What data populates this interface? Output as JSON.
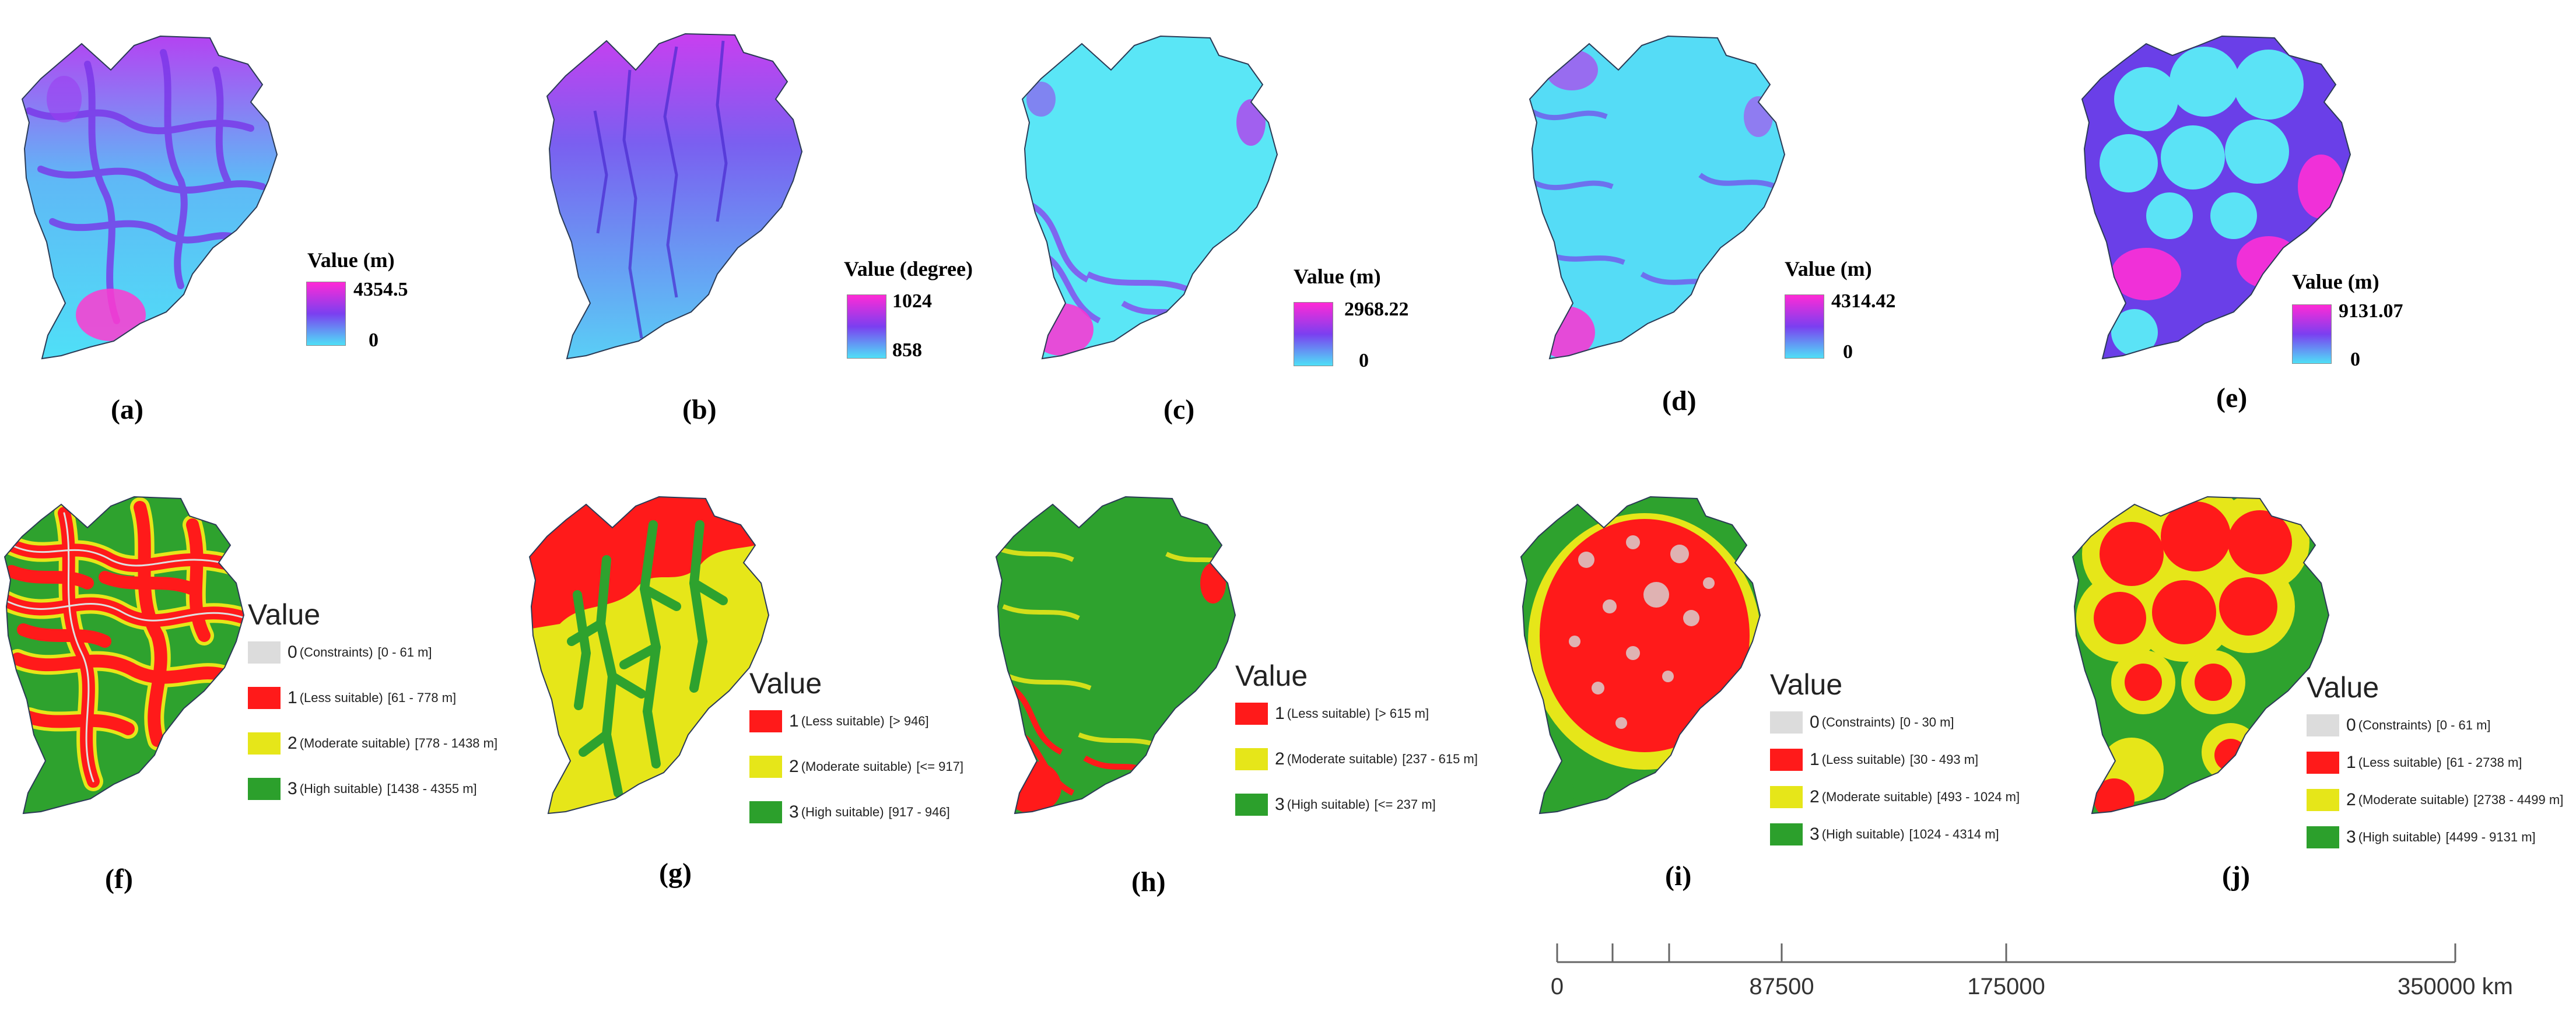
{
  "continuous_panels": [
    {
      "caption": "(a)",
      "legend_title": "Value (m)",
      "max": "4354.5",
      "min": "0",
      "colors": {
        "low": "#4fe0f7",
        "mid": "#7b3ff0",
        "high": "#ff2ad6"
      }
    },
    {
      "caption": "(b)",
      "legend_title": "Value (degree)",
      "max": "1024",
      "min": "858",
      "colors": {
        "low": "#4fe0f7",
        "mid": "#7b3ff0",
        "high": "#ff2ad6"
      }
    },
    {
      "caption": "(c)",
      "legend_title": "Value (m)",
      "max": "2968.22",
      "min": "0",
      "colors": {
        "low": "#4fe0f7",
        "mid": "#7b3ff0",
        "high": "#ff2ad6"
      }
    },
    {
      "caption": "(d)",
      "legend_title": "Value (m)",
      "max": "4314.42",
      "min": "0",
      "colors": {
        "low": "#4fe0f7",
        "mid": "#7b3ff0",
        "high": "#ff2ad6"
      }
    },
    {
      "caption": "(e)",
      "legend_title": "Value (m)",
      "max": "9131.07",
      "min": "0",
      "colors": {
        "low": "#4fe0f7",
        "mid": "#7b3ff0",
        "high": "#ff2ad6"
      }
    }
  ],
  "suitability_panels": [
    {
      "caption": "(f)",
      "legend_title": "Value",
      "items": [
        {
          "num": "0",
          "label": "(Constraints)",
          "range": "[0 - 61 m]",
          "color": "#dcdcdc"
        },
        {
          "num": "1",
          "label": "(Less suitable)",
          "range": "[61 - 778 m]",
          "color": "#ff1a1a"
        },
        {
          "num": "2",
          "label": "(Moderate suitable)",
          "range": "[778 - 1438 m]",
          "color": "#e6e619"
        },
        {
          "num": "3",
          "label": "(High suitable)",
          "range": "[1438 - 4355 m]",
          "color": "#2ca02c"
        }
      ]
    },
    {
      "caption": "(g)",
      "legend_title": "Value",
      "items": [
        {
          "num": "1",
          "label": "(Less suitable)",
          "range": "[> 946]",
          "color": "#ff1a1a"
        },
        {
          "num": "2",
          "label": "(Moderate suitable)",
          "range": "[<= 917]",
          "color": "#e6e619"
        },
        {
          "num": "3",
          "label": "(High suitable)",
          "range": "[917 - 946]",
          "color": "#2ca02c"
        }
      ]
    },
    {
      "caption": "(h)",
      "legend_title": "Value",
      "items": [
        {
          "num": "1",
          "label": "(Less suitable)",
          "range": "[> 615 m]",
          "color": "#ff1a1a"
        },
        {
          "num": "2",
          "label": "(Moderate suitable)",
          "range": "[237 - 615 m]",
          "color": "#e6e619"
        },
        {
          "num": "3",
          "label": "(High suitable)",
          "range": "[<= 237 m]",
          "color": "#2ca02c"
        }
      ]
    },
    {
      "caption": "(i)",
      "legend_title": "Value",
      "items": [
        {
          "num": "0",
          "label": "(Constraints)",
          "range": "[0 - 30 m]",
          "color": "#dcdcdc"
        },
        {
          "num": "1",
          "label": "(Less suitable)",
          "range": "[30 - 493 m]",
          "color": "#ff1a1a"
        },
        {
          "num": "2",
          "label": "(Moderate suitable)",
          "range": "[493 - 1024 m]",
          "color": "#e6e619"
        },
        {
          "num": "3",
          "label": "(High suitable)",
          "range": "[1024 - 4314 m]",
          "color": "#2ca02c"
        }
      ]
    },
    {
      "caption": "(j)",
      "legend_title": "Value",
      "items": [
        {
          "num": "0",
          "label": "(Constraints)",
          "range": "[0 - 61 m]",
          "color": "#dcdcdc"
        },
        {
          "num": "1",
          "label": "(Less suitable)",
          "range": "[61 - 2738 m]",
          "color": "#ff1a1a"
        },
        {
          "num": "2",
          "label": "(Moderate suitable)",
          "range": "[2738 - 4499 m]",
          "color": "#e6e619"
        },
        {
          "num": "3",
          "label": "(High suitable)",
          "range": "[4499 - 9131 m]",
          "color": "#2ca02c"
        }
      ]
    }
  ],
  "scale_bar": {
    "ticks": [
      "0",
      "87500",
      "175000",
      "350000 km"
    ]
  }
}
